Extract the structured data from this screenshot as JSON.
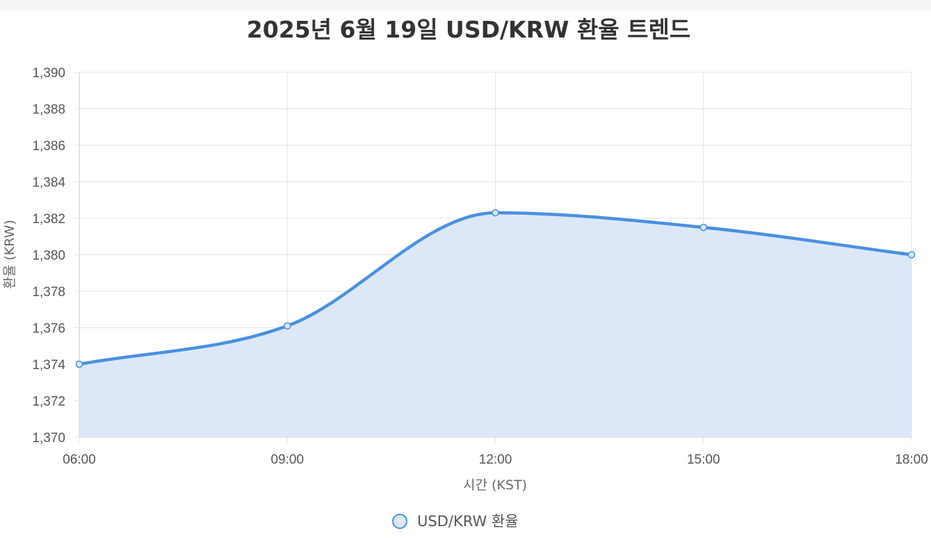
{
  "chart_data": {
    "type": "line",
    "title": "2025년 6월 19일 USD/KRW 환율 트렌드",
    "xlabel": "시간 (KST)",
    "ylabel": "환율 (KRW)",
    "categories": [
      "06:00",
      "09:00",
      "12:00",
      "15:00",
      "18:00"
    ],
    "series": [
      {
        "name": "USD/KRW 환율",
        "values": [
          1374.0,
          1376.1,
          1382.3,
          1381.5,
          1380.0
        ]
      }
    ],
    "ylim": [
      1370,
      1390
    ],
    "yticks": [
      1370,
      1372,
      1374,
      1376,
      1378,
      1380,
      1382,
      1384,
      1386,
      1388,
      1390
    ],
    "ytick_labels": [
      "1,370",
      "1,372",
      "1,374",
      "1,376",
      "1,378",
      "1,380",
      "1,382",
      "1,384",
      "1,386",
      "1,388",
      "1,390"
    ],
    "fill": true,
    "smooth": true,
    "grid": true,
    "legend_position": "bottom",
    "colors": {
      "line": "#4a90e2",
      "fill": "#dce8f7",
      "grid": "#e3e3e3",
      "title": "#333333"
    }
  }
}
